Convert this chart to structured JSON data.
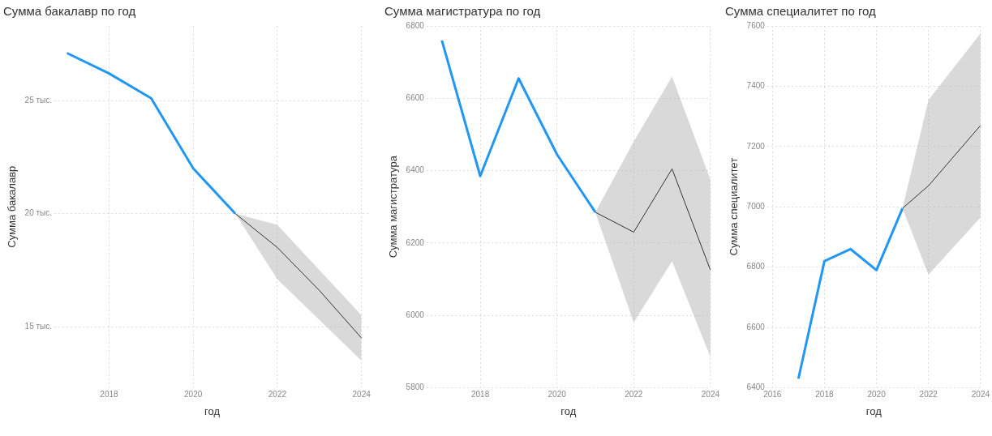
{
  "chart_data": [
    {
      "type": "line",
      "title": "Сумма бакалавр по год",
      "xlabel": "год",
      "ylabel": "Сумма бакалавр",
      "xlim": [
        2016.7,
        2024.2
      ],
      "xticks": [
        2018,
        2020,
        2022,
        2024
      ],
      "ylim": [
        12.3,
        28.3
      ],
      "yticks": [
        {
          "value": 15,
          "label": "15 тыс."
        },
        {
          "value": 20,
          "label": "20 тыс."
        },
        {
          "value": 25,
          "label": "25 тыс."
        }
      ],
      "grid": true,
      "line_style": "solid",
      "series": [
        {
          "color": "#2196f3",
          "x": [
            2017,
            2018,
            2019,
            2020,
            2021
          ],
          "values": [
            27.1,
            26.2,
            25.1,
            22.0,
            20.0
          ]
        },
        {
          "color": "#333333",
          "x": [
            2021,
            2022,
            2023,
            2024
          ],
          "values": [
            20.0,
            18.5,
            16.6,
            14.5
          ],
          "lower": [
            20.0,
            17.1,
            15.3,
            13.5
          ],
          "upper": [
            20.0,
            19.5,
            17.5,
            15.5
          ]
        }
      ]
    },
    {
      "type": "line",
      "title": "Сумма магистратура по год",
      "xlabel": "год",
      "ylabel": "Сумма магистратура",
      "xlim": [
        2016.6,
        2024
      ],
      "xticks": [
        2018,
        2020,
        2022,
        2024
      ],
      "ylim": [
        5800,
        6800
      ],
      "yticks": [
        5800,
        6000,
        6200,
        6400,
        6600,
        6800
      ],
      "grid": true,
      "line_style": "solid",
      "series": [
        {
          "color": "#2196f3",
          "x": [
            2017,
            2018,
            2019,
            2020,
            2021
          ],
          "values": [
            6760,
            6385,
            6655,
            6445,
            6285
          ]
        },
        {
          "color": "#333333",
          "x": [
            2021,
            2022,
            2023,
            2024
          ],
          "values": [
            6285,
            6230,
            6405,
            6125
          ],
          "lower": [
            6285,
            5980,
            6150,
            5885
          ],
          "upper": [
            6285,
            6480,
            6660,
            6375
          ]
        }
      ]
    },
    {
      "type": "line",
      "title": "Сумма специалитет по год",
      "xlabel": "год",
      "ylabel": "Сумма специалитет",
      "xlim": [
        2015.8,
        2024
      ],
      "xticks": [
        2016,
        2018,
        2020,
        2022,
        2024
      ],
      "ylim": [
        6400,
        7600
      ],
      "yticks": [
        6400,
        6600,
        6800,
        7000,
        7200,
        7400,
        7600
      ],
      "grid": true,
      "line_style": "solid",
      "series": [
        {
          "color": "#2196f3",
          "x": [
            2017,
            2018,
            2019,
            2020,
            2021
          ],
          "values": [
            6430,
            6820,
            6860,
            6790,
            6995
          ]
        },
        {
          "color": "#333333",
          "x": [
            2021,
            2022,
            2023,
            2024
          ],
          "values": [
            6995,
            7070,
            7170,
            7270
          ],
          "lower": [
            6995,
            6775,
            6870,
            6965
          ],
          "upper": [
            6995,
            7355,
            7465,
            7575
          ]
        }
      ]
    }
  ]
}
